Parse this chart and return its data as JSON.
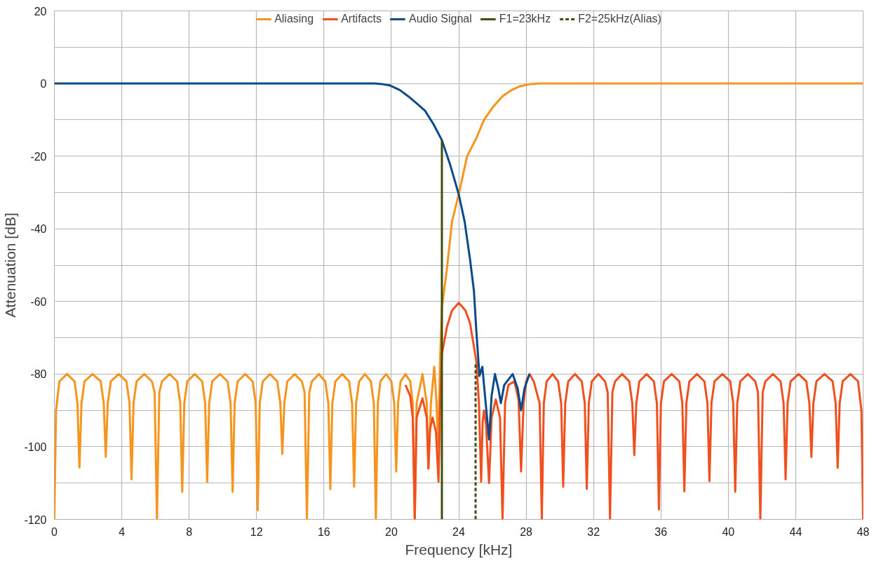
{
  "chart_data": {
    "type": "line",
    "xlabel": "Frequency [kHz]",
    "ylabel": "Attenuation [dB]",
    "xlim": [
      0,
      48
    ],
    "xticks": [
      0,
      4,
      8,
      12,
      16,
      20,
      24,
      28,
      32,
      36,
      40,
      44,
      48
    ],
    "ylim": [
      -120,
      20
    ],
    "yticks": [
      -120,
      {
        "value": -110,
        "label": null
      },
      -100,
      {
        "value": -90,
        "label": null
      },
      -80,
      {
        "value": -70,
        "label": null
      },
      -60,
      {
        "value": -50,
        "label": null
      },
      -40,
      {
        "value": -30,
        "label": null
      },
      -20,
      {
        "value": -10,
        "label": null
      },
      0,
      {
        "value": 10,
        "label": null
      },
      20
    ],
    "grid": true,
    "legend": "top",
    "line_style": "solid",
    "series": [
      {
        "name": "Aliasing",
        "color": "#f7941d",
        "x": [
          0,
          0.1,
          0.3,
          0.75,
          1.2,
          1.37,
          1.49,
          1.61,
          1.79,
          2.27,
          2.75,
          2.93,
          3.05,
          3.17,
          3.35,
          3.82,
          4.28,
          4.46,
          4.58,
          4.7,
          4.88,
          5.34,
          5.79,
          5.95,
          6.09,
          6.23,
          6.39,
          6.84,
          7.29,
          7.47,
          7.59,
          7.71,
          7.89,
          8.33,
          8.77,
          8.95,
          9.07,
          9.19,
          9.37,
          9.83,
          10.28,
          10.46,
          10.58,
          10.7,
          10.88,
          11.33,
          11.77,
          11.95,
          12.07,
          12.19,
          12.37,
          12.8,
          13.23,
          13.41,
          13.53,
          13.65,
          13.83,
          14.26,
          14.69,
          14.85,
          14.99,
          15.13,
          15.29,
          15.69,
          16.08,
          16.26,
          16.38,
          16.5,
          16.68,
          17.09,
          17.49,
          17.67,
          17.79,
          17.91,
          18.09,
          18.44,
          18.78,
          18.96,
          19.08,
          19.2,
          19.35,
          19.69,
          20.0,
          20.17,
          20.29,
          20.4,
          20.55,
          20.84,
          21.12,
          21.27,
          21.39,
          21.5,
          21.85,
          22.1,
          22.2,
          22.35,
          22.55,
          22.68,
          22.78,
          22.9,
          23.0,
          23.3,
          23.6,
          24.0,
          24.5,
          25.05,
          25.5,
          26.06,
          26.6,
          27.1,
          27.6,
          28.2,
          28.8,
          48
        ],
        "values": [
          -120,
          -90,
          -82,
          -80,
          -82,
          -88,
          -105.7,
          -88,
          -82,
          -80,
          -82,
          -88,
          -102.8,
          -88,
          -82,
          -80,
          -82,
          -88,
          -109,
          -88,
          -82,
          -80,
          -82,
          -85,
          -120,
          -85,
          -82,
          -80,
          -82,
          -88,
          -112.4,
          -88,
          -82,
          -80,
          -82,
          -88,
          -109.7,
          -88,
          -82,
          -80,
          -82,
          -88,
          -112.4,
          -88,
          -82,
          -80,
          -82,
          -88,
          -117.5,
          -88,
          -82,
          -80,
          -82,
          -88,
          -102,
          -88,
          -82,
          -80,
          -82,
          -85,
          -120,
          -85,
          -82,
          -80,
          -82,
          -88,
          -111.7,
          -88,
          -82,
          -80,
          -82,
          -88,
          -111,
          -88,
          -82,
          -80,
          -82,
          -88,
          -120,
          -88,
          -82,
          -80,
          -82,
          -88,
          -106.8,
          -88,
          -82,
          -80,
          -82,
          -88,
          -120,
          -88,
          -80,
          -88,
          -106,
          -88,
          -78,
          -88,
          -100,
          -75,
          -61.7,
          -51,
          -38,
          -30.5,
          -20,
          -15,
          -10,
          -6.3,
          -3.5,
          -1.9,
          -0.8,
          -0.2,
          0,
          0
        ]
      },
      {
        "name": "Artifacts",
        "color": "#f0501e",
        "x": [
          20.84,
          21.12,
          21.27,
          21.39,
          21.5,
          21.85,
          22.1,
          22.2,
          22.3,
          22.45,
          22.65,
          22.8,
          22.9,
          23.0,
          23.3,
          23.6,
          24.0,
          24.4,
          24.67,
          25.05,
          25.2,
          25.33,
          25.42,
          25.5,
          25.62,
          25.8,
          25.95,
          26.2,
          26.45,
          26.6,
          26.75,
          26.95,
          27.3,
          27.55,
          27.7,
          27.85,
          28.0,
          28.2,
          28.45,
          28.8,
          28.93,
          29.05,
          29.22,
          29.57,
          29.9,
          30.08,
          30.2,
          30.32,
          30.5,
          30.9,
          31.3,
          31.48,
          31.6,
          31.72,
          31.9,
          32.29,
          32.68,
          32.84,
          32.98,
          33.12,
          33.28,
          33.7,
          34.12,
          34.3,
          34.42,
          34.54,
          34.72,
          35.15,
          35.58,
          35.76,
          35.88,
          36.0,
          36.18,
          36.64,
          37.09,
          37.27,
          37.39,
          37.51,
          37.69,
          38.14,
          38.58,
          38.76,
          38.88,
          39.0,
          39.18,
          39.65,
          40.11,
          40.29,
          40.41,
          40.53,
          40.71,
          41.16,
          41.6,
          41.76,
          41.9,
          42.04,
          42.2,
          42.65,
          43.1,
          43.28,
          43.4,
          43.52,
          43.7,
          44.17,
          44.63,
          44.81,
          44.93,
          45.05,
          45.23,
          45.71,
          46.19,
          46.37,
          46.49,
          46.61,
          46.79,
          47.25,
          47.7,
          47.9,
          48
        ],
        "values": [
          -83,
          -86,
          -92,
          -120,
          -92,
          -86.7,
          -92,
          -106,
          -95,
          -92,
          -96,
          -109.6,
          -88,
          -74.5,
          -67,
          -62.5,
          -60.4,
          -62.5,
          -66,
          -76.6,
          -88,
          -109.6,
          -93,
          -90,
          -94,
          -110,
          -92,
          -87,
          -92,
          -120,
          -88,
          -83,
          -82,
          -87,
          -106.8,
          -88,
          -82,
          -80,
          -82,
          -88,
          -120,
          -88,
          -82,
          -80,
          -82,
          -88,
          -111,
          -88,
          -82,
          -80,
          -82,
          -88,
          -111.6,
          -88,
          -82,
          -80,
          -82,
          -85,
          -120,
          -85,
          -82,
          -80,
          -82,
          -88,
          -102.3,
          -88,
          -82,
          -80,
          -82,
          -88,
          -117.3,
          -88,
          -82,
          -80,
          -82,
          -88,
          -112.3,
          -88,
          -82,
          -80,
          -82,
          -88,
          -109.5,
          -88,
          -82,
          -80,
          -82,
          -88,
          -112.4,
          -88,
          -82,
          -80,
          -82,
          -85,
          -120,
          -85,
          -82,
          -80,
          -82,
          -88,
          -109,
          -88,
          -82,
          -80,
          -82,
          -88,
          -102.8,
          -88,
          -82,
          -80,
          -82,
          -88,
          -105.8,
          -88,
          -82,
          -80,
          -82,
          -90,
          -120
        ]
      },
      {
        "name": "Audio Signal",
        "color": "#0a4a8a",
        "x": [
          0,
          19.0,
          19.5,
          19.9,
          20.5,
          21.0,
          21.54,
          22.0,
          22.5,
          23.0,
          23.5,
          24.0,
          24.35,
          24.67,
          24.9,
          25.05,
          25.23,
          25.4,
          25.6,
          25.8,
          25.95,
          26.15,
          26.35,
          26.5,
          26.7,
          27.2,
          27.5,
          27.7,
          27.9,
          28.2
        ],
        "values": [
          0,
          0,
          -0.2,
          -0.5,
          -1.8,
          -3.5,
          -5.6,
          -7.5,
          -11.2,
          -15.6,
          -22.5,
          -30.5,
          -38,
          -48.4,
          -57,
          -68.5,
          -80.5,
          -78,
          -88,
          -98,
          -86,
          -80,
          -84,
          -88,
          -83,
          -80,
          -84,
          -90,
          -84,
          -80
        ]
      },
      {
        "name": "F1=23kHz",
        "color": "#3d4f0f",
        "x": [
          23,
          23
        ],
        "values": [
          -120,
          -15.6
        ]
      },
      {
        "name": "F2=25kHz(Alias)",
        "color": "#4a4a1a",
        "line_style": "dashed",
        "x": [
          25,
          25
        ],
        "values": [
          -120,
          -77
        ]
      }
    ]
  }
}
